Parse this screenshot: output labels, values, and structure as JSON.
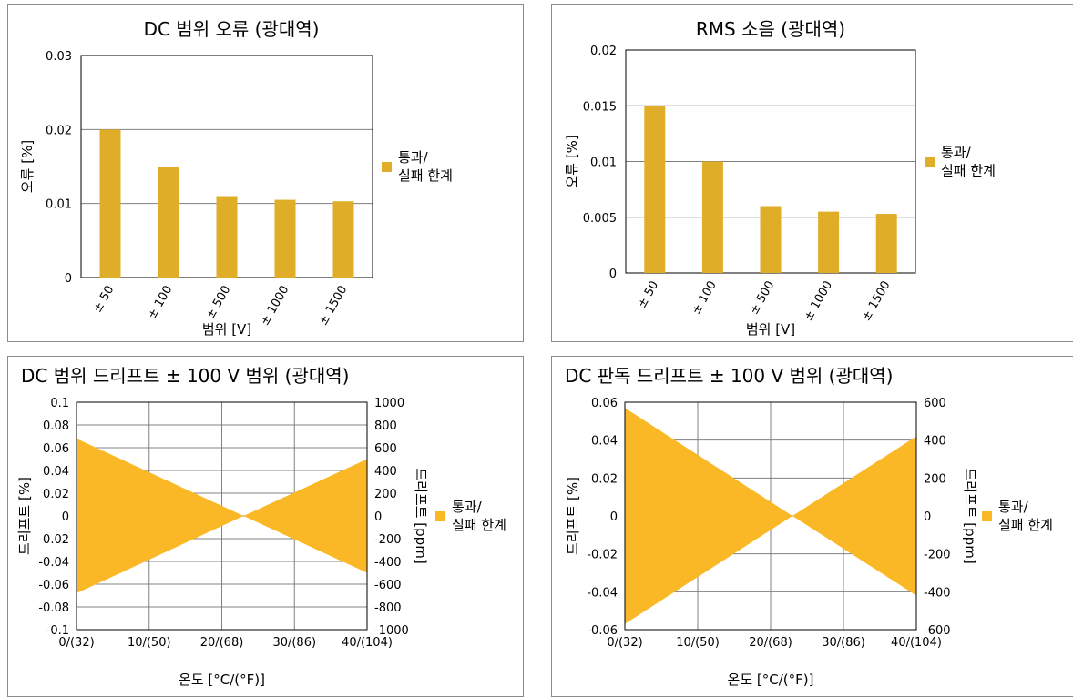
{
  "colors": {
    "bar": "#e0ad28",
    "band": "#fbb826",
    "grid": "#808080",
    "axis": "#000000"
  },
  "chart_data": [
    {
      "type": "bar",
      "title": "DC 범위 오류 (광대역)",
      "xlabel": "범위 [V]",
      "ylabel": "오류 [%]",
      "categories": [
        "± 50",
        "± 100",
        "± 500",
        "± 1000",
        "± 1500"
      ],
      "series": [
        {
          "name": "통과/ 실패 한계",
          "values": [
            0.02,
            0.015,
            0.011,
            0.0105,
            0.0103
          ]
        }
      ],
      "ylim": [
        0,
        0.03
      ],
      "yticks": [
        "0",
        "0.01",
        "0.02",
        "0.03"
      ],
      "legend": [
        "통과/",
        "실패 한계"
      ]
    },
    {
      "type": "bar",
      "title": "RMS 소음 (광대역)",
      "xlabel": "범위 [V]",
      "ylabel": "오류 [%]",
      "categories": [
        "± 50",
        "± 100",
        "± 500",
        "± 1000",
        "± 1500"
      ],
      "series": [
        {
          "name": "통과/ 실패 한계",
          "values": [
            0.015,
            0.01,
            0.006,
            0.0055,
            0.0053
          ]
        }
      ],
      "ylim": [
        0,
        0.02
      ],
      "yticks": [
        "0",
        "0.005",
        "0.01",
        "0.015",
        "0.02"
      ],
      "legend": [
        "통과/",
        "실패 한계"
      ]
    },
    {
      "type": "area",
      "title": "DC 범위 드리프트 ± 100 V 범위 (광대역)",
      "xlabel": "온도 [°C/(°F)]",
      "ylabel": "드리프트 [%]",
      "y2label": "드리프트 [ppm]",
      "x": [
        0,
        23,
        40
      ],
      "upper": [
        0.068,
        0,
        0.05
      ],
      "lower": [
        -0.068,
        0,
        -0.05
      ],
      "xlim": [
        0,
        40
      ],
      "xticks": [
        "0/(32)",
        "10/(50)",
        "20/(68)",
        "30/(86)",
        "40/(104)"
      ],
      "ylim": [
        -0.1,
        0.1
      ],
      "yticks": [
        "-0.1",
        "-0.08",
        "-0.06",
        "-0.04",
        "-0.02",
        "0",
        "0.02",
        "0.04",
        "0.06",
        "0.08",
        "0.1"
      ],
      "y2ticks": [
        "-1000",
        "-800",
        "-600",
        "-400",
        "-200",
        "0",
        "200",
        "400",
        "600",
        "800",
        "1000"
      ],
      "legend": [
        "통과/",
        "실패 한계"
      ]
    },
    {
      "type": "area",
      "title": "DC 판독 드리프트 ± 100 V 범위 (광대역)",
      "xlabel": "온도 [°C/(°F)]",
      "ylabel": "드리프트 [%]",
      "y2label": "드리프트 [ppm]",
      "x": [
        0,
        23,
        40
      ],
      "upper": [
        0.057,
        0,
        0.042
      ],
      "lower": [
        -0.057,
        0,
        -0.042
      ],
      "xlim": [
        0,
        40
      ],
      "xticks": [
        "0/(32)",
        "10/(50)",
        "20/(68)",
        "30/(86)",
        "40/(104)"
      ],
      "ylim": [
        -0.06,
        0.06
      ],
      "yticks": [
        "-0.06",
        "-0.04",
        "-0.02",
        "0",
        "0.02",
        "0.04",
        "0.06"
      ],
      "y2ticks": [
        "-600",
        "-400",
        "-200",
        "0",
        "200",
        "400",
        "600"
      ],
      "legend": [
        "통과/",
        "실패 한계"
      ]
    }
  ]
}
